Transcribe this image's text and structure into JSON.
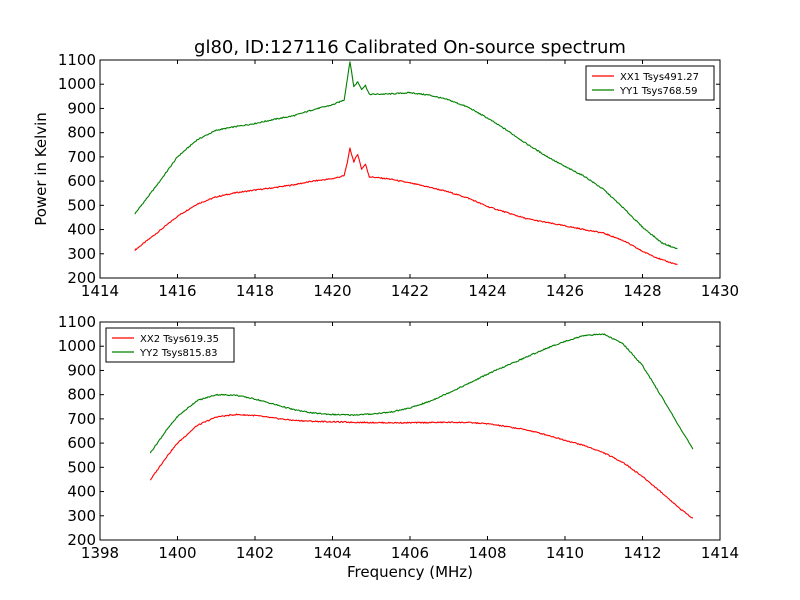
{
  "chart_data": [
    {
      "type": "line",
      "title": "gl80, ID:127116 Calibrated On-source spectrum",
      "xlabel": "",
      "ylabel": "Power in Kelvin",
      "xlim": [
        1414,
        1430
      ],
      "ylim": [
        200,
        1100
      ],
      "xticks": [
        "1414",
        "1416",
        "1418",
        "1420",
        "1422",
        "1424",
        "1426",
        "1428",
        "1430"
      ],
      "yticks": [
        "200",
        "300",
        "400",
        "500",
        "600",
        "700",
        "800",
        "900",
        "1000",
        "1100"
      ],
      "legend": "top-right",
      "grid": false,
      "series": [
        {
          "name": "XX1 Tsys491.27",
          "color": "#ff0000",
          "x": [
            1414.9,
            1415.5,
            1416.0,
            1416.5,
            1417.0,
            1417.5,
            1418.0,
            1418.5,
            1419.0,
            1419.5,
            1420.0,
            1420.3,
            1420.4,
            1420.45,
            1420.55,
            1420.65,
            1420.75,
            1420.85,
            1420.95,
            1421.5,
            1422.0,
            1422.5,
            1423.0,
            1423.5,
            1424.0,
            1424.5,
            1425.0,
            1425.5,
            1426.0,
            1426.5,
            1427.0,
            1427.5,
            1428.0,
            1428.5,
            1428.9
          ],
          "values": [
            315,
            390,
            455,
            505,
            535,
            552,
            563,
            573,
            585,
            600,
            610,
            622,
            690,
            735,
            680,
            712,
            650,
            670,
            618,
            608,
            592,
            575,
            555,
            530,
            495,
            470,
            445,
            430,
            415,
            400,
            385,
            355,
            310,
            275,
            255
          ]
        },
        {
          "name": "YY1 Tsys768.59",
          "color": "#008000",
          "x": [
            1414.9,
            1415.5,
            1416.0,
            1416.5,
            1417.0,
            1417.5,
            1418.0,
            1418.5,
            1419.0,
            1419.5,
            1420.0,
            1420.3,
            1420.4,
            1420.45,
            1420.55,
            1420.65,
            1420.75,
            1420.85,
            1420.95,
            1421.5,
            1422.0,
            1422.5,
            1423.0,
            1423.5,
            1424.0,
            1424.5,
            1425.0,
            1425.5,
            1426.0,
            1426.5,
            1427.0,
            1427.5,
            1428.0,
            1428.5,
            1428.9
          ],
          "values": [
            465,
            590,
            700,
            770,
            810,
            825,
            838,
            855,
            870,
            895,
            915,
            935,
            1040,
            1095,
            990,
            1010,
            980,
            995,
            958,
            960,
            965,
            955,
            935,
            905,
            860,
            810,
            755,
            705,
            660,
            620,
            565,
            490,
            410,
            345,
            320
          ]
        }
      ]
    },
    {
      "type": "line",
      "title": "",
      "xlabel": "Frequency (MHz)",
      "ylabel": "",
      "xlim": [
        1398,
        1414
      ],
      "ylim": [
        200,
        1100
      ],
      "xticks": [
        "1398",
        "1400",
        "1402",
        "1404",
        "1406",
        "1408",
        "1410",
        "1412",
        "1414"
      ],
      "yticks": [
        "200",
        "300",
        "400",
        "500",
        "600",
        "700",
        "800",
        "900",
        "1000",
        "1100"
      ],
      "legend": "top-left",
      "grid": false,
      "series": [
        {
          "name": "XX2 Tsys619.35",
          "color": "#ff0000",
          "x": [
            1399.3,
            1399.7,
            1400.0,
            1400.5,
            1401.0,
            1401.5,
            1402.0,
            1402.5,
            1403.0,
            1403.5,
            1404.0,
            1404.5,
            1405.0,
            1405.5,
            1406.0,
            1406.5,
            1407.0,
            1407.5,
            1408.0,
            1408.5,
            1409.0,
            1409.5,
            1410.0,
            1410.5,
            1411.0,
            1411.5,
            1412.0,
            1412.5,
            1413.0,
            1413.3
          ],
          "values": [
            448,
            540,
            600,
            672,
            708,
            718,
            714,
            703,
            694,
            690,
            688,
            686,
            685,
            684,
            684,
            685,
            686,
            685,
            680,
            668,
            655,
            635,
            612,
            590,
            560,
            520,
            462,
            395,
            325,
            290
          ]
        },
        {
          "name": "YY2 Tsys815.83",
          "color": "#008000",
          "x": [
            1399.3,
            1399.7,
            1400.0,
            1400.5,
            1401.0,
            1401.5,
            1402.0,
            1402.5,
            1403.0,
            1403.5,
            1404.0,
            1404.5,
            1405.0,
            1405.5,
            1406.0,
            1406.5,
            1407.0,
            1407.5,
            1408.0,
            1408.5,
            1409.0,
            1409.5,
            1410.0,
            1410.5,
            1411.0,
            1411.5,
            1412.0,
            1412.5,
            1413.0,
            1413.3
          ],
          "values": [
            560,
            650,
            710,
            775,
            800,
            798,
            782,
            760,
            738,
            724,
            718,
            716,
            720,
            728,
            745,
            772,
            808,
            845,
            885,
            920,
            955,
            990,
            1020,
            1045,
            1050,
            1010,
            920,
            790,
            655,
            575
          ]
        }
      ]
    }
  ]
}
